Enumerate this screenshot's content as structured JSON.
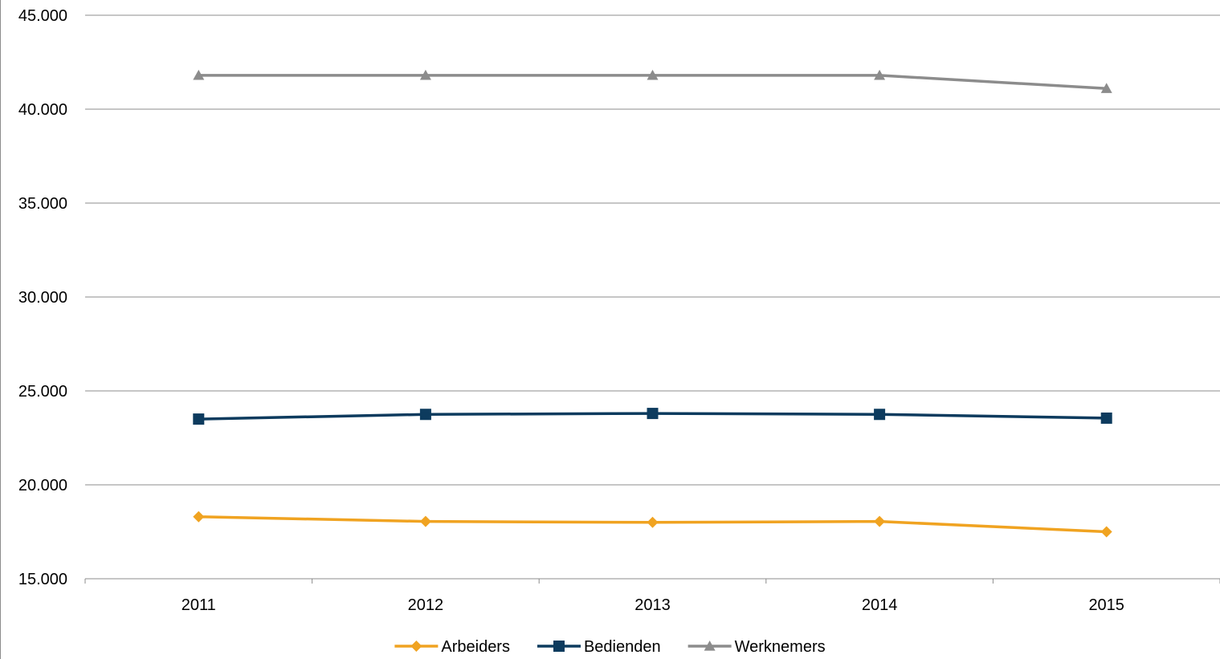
{
  "chart_data": {
    "type": "line",
    "title": "",
    "xlabel": "",
    "ylabel": "",
    "x": [
      "2011",
      "2012",
      "2013",
      "2014",
      "2015"
    ],
    "ylim": [
      15000,
      45000
    ],
    "yticks": [
      15000,
      20000,
      25000,
      30000,
      35000,
      40000,
      45000
    ],
    "ytick_labels": [
      "15.000",
      "20.000",
      "25.000",
      "30.000",
      "35.000",
      "40.000",
      "45.000"
    ],
    "grid": true,
    "legend_position": "bottom",
    "series": [
      {
        "name": "Arbeiders",
        "marker": "diamond",
        "color": "#f0a321",
        "values": [
          18300,
          18050,
          18000,
          18050,
          17500
        ]
      },
      {
        "name": "Bedienden",
        "marker": "square",
        "color": "#0d3b5e",
        "values": [
          23500,
          23750,
          23800,
          23750,
          23550
        ]
      },
      {
        "name": "Werknemers",
        "marker": "triangle",
        "color": "#8c8c8c",
        "values": [
          41800,
          41800,
          41800,
          41800,
          41100
        ]
      }
    ]
  }
}
